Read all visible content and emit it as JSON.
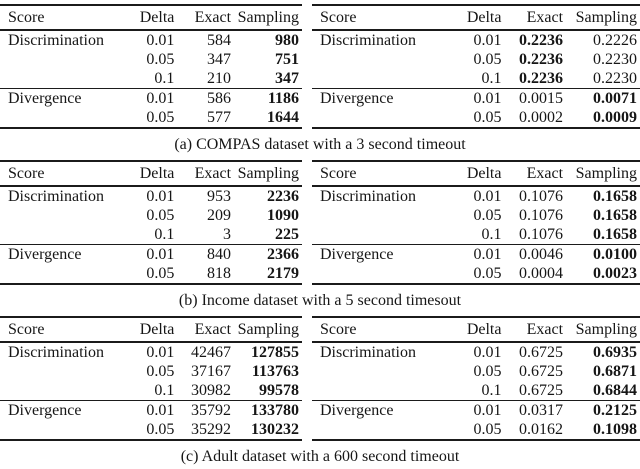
{
  "sections": [
    {
      "caption": "(a) COMPAS dataset with a 3 second timeout",
      "tables": [
        {
          "headers": [
            "Score",
            "Delta",
            "Exact",
            "Sampling"
          ],
          "rows": [
            {
              "cells": [
                "Discrimination",
                "0.01",
                "584",
                "980"
              ],
              "bold": [
                false,
                false,
                false,
                true
              ],
              "rule_above": false
            },
            {
              "cells": [
                "",
                "0.05",
                "347",
                "751"
              ],
              "bold": [
                false,
                false,
                false,
                true
              ],
              "rule_above": false
            },
            {
              "cells": [
                "",
                "0.1",
                "210",
                "347"
              ],
              "bold": [
                false,
                false,
                false,
                true
              ],
              "rule_above": false
            },
            {
              "cells": [
                "Divergence",
                "0.01",
                "586",
                "1186"
              ],
              "bold": [
                false,
                false,
                false,
                true
              ],
              "rule_above": true
            },
            {
              "cells": [
                "",
                "0.05",
                "577",
                "1644"
              ],
              "bold": [
                false,
                false,
                false,
                true
              ],
              "rule_above": false
            }
          ]
        },
        {
          "headers": [
            "Score",
            "Delta",
            "Exact",
            "Sampling"
          ],
          "rows": [
            {
              "cells": [
                "Discrimination",
                "0.01",
                "0.2236",
                "0.2226"
              ],
              "bold": [
                false,
                false,
                true,
                false
              ],
              "rule_above": false
            },
            {
              "cells": [
                "",
                "0.05",
                "0.2236",
                "0.2230"
              ],
              "bold": [
                false,
                false,
                true,
                false
              ],
              "rule_above": false
            },
            {
              "cells": [
                "",
                "0.1",
                "0.2236",
                "0.2230"
              ],
              "bold": [
                false,
                false,
                true,
                false
              ],
              "rule_above": false
            },
            {
              "cells": [
                "Divergence",
                "0.01",
                "0.0015",
                "0.0071"
              ],
              "bold": [
                false,
                false,
                false,
                true
              ],
              "rule_above": true
            },
            {
              "cells": [
                "",
                "0.05",
                "0.0002",
                "0.0009"
              ],
              "bold": [
                false,
                false,
                false,
                true
              ],
              "rule_above": false
            }
          ]
        }
      ]
    },
    {
      "caption": "(b) Income dataset with a 5 second timesout",
      "tables": [
        {
          "headers": [
            "Score",
            "Delta",
            "Exact",
            "Sampling"
          ],
          "rows": [
            {
              "cells": [
                "Discrimination",
                "0.01",
                "953",
                "2236"
              ],
              "bold": [
                false,
                false,
                false,
                true
              ],
              "rule_above": false
            },
            {
              "cells": [
                "",
                "0.05",
                "209",
                "1090"
              ],
              "bold": [
                false,
                false,
                false,
                true
              ],
              "rule_above": false
            },
            {
              "cells": [
                "",
                "0.1",
                "3",
                "225"
              ],
              "bold": [
                false,
                false,
                false,
                true
              ],
              "rule_above": false
            },
            {
              "cells": [
                "Divergence",
                "0.01",
                "840",
                "2366"
              ],
              "bold": [
                false,
                false,
                false,
                true
              ],
              "rule_above": true
            },
            {
              "cells": [
                "",
                "0.05",
                "818",
                "2179"
              ],
              "bold": [
                false,
                false,
                false,
                true
              ],
              "rule_above": false
            }
          ]
        },
        {
          "headers": [
            "Score",
            "Delta",
            "Exact",
            "Sampling"
          ],
          "rows": [
            {
              "cells": [
                "Discrimination",
                "0.01",
                "0.1076",
                "0.1658"
              ],
              "bold": [
                false,
                false,
                false,
                true
              ],
              "rule_above": false
            },
            {
              "cells": [
                "",
                "0.05",
                "0.1076",
                "0.1658"
              ],
              "bold": [
                false,
                false,
                false,
                true
              ],
              "rule_above": false
            },
            {
              "cells": [
                "",
                "0.1",
                "0.1076",
                "0.1658"
              ],
              "bold": [
                false,
                false,
                false,
                true
              ],
              "rule_above": false
            },
            {
              "cells": [
                "Divergence",
                "0.01",
                "0.0046",
                "0.0100"
              ],
              "bold": [
                false,
                false,
                false,
                true
              ],
              "rule_above": true
            },
            {
              "cells": [
                "",
                "0.05",
                "0.0004",
                "0.0023"
              ],
              "bold": [
                false,
                false,
                false,
                true
              ],
              "rule_above": false
            }
          ]
        }
      ]
    },
    {
      "caption": "(c) Adult dataset with a 600 second timeout",
      "tables": [
        {
          "headers": [
            "Score",
            "Delta",
            "Exact",
            "Sampling"
          ],
          "rows": [
            {
              "cells": [
                "Discrimination",
                "0.01",
                "42467",
                "127855"
              ],
              "bold": [
                false,
                false,
                false,
                true
              ],
              "rule_above": false
            },
            {
              "cells": [
                "",
                "0.05",
                "37167",
                "113763"
              ],
              "bold": [
                false,
                false,
                false,
                true
              ],
              "rule_above": false
            },
            {
              "cells": [
                "",
                "0.1",
                "30982",
                "99578"
              ],
              "bold": [
                false,
                false,
                false,
                true
              ],
              "rule_above": false
            },
            {
              "cells": [
                "Divergence",
                "0.01",
                "35792",
                "133780"
              ],
              "bold": [
                false,
                false,
                false,
                true
              ],
              "rule_above": true
            },
            {
              "cells": [
                "",
                "0.05",
                "35292",
                "130232"
              ],
              "bold": [
                false,
                false,
                false,
                true
              ],
              "rule_above": false
            }
          ]
        },
        {
          "headers": [
            "Score",
            "Delta",
            "Exact",
            "Sampling"
          ],
          "rows": [
            {
              "cells": [
                "Discrimination",
                "0.01",
                "0.6725",
                "0.6935"
              ],
              "bold": [
                false,
                false,
                false,
                true
              ],
              "rule_above": false
            },
            {
              "cells": [
                "",
                "0.05",
                "0.6725",
                "0.6871"
              ],
              "bold": [
                false,
                false,
                false,
                true
              ],
              "rule_above": false
            },
            {
              "cells": [
                "",
                "0.1",
                "0.6725",
                "0.6844"
              ],
              "bold": [
                false,
                false,
                false,
                true
              ],
              "rule_above": false
            },
            {
              "cells": [
                "Divergence",
                "0.01",
                "0.0317",
                "0.2125"
              ],
              "bold": [
                false,
                false,
                false,
                true
              ],
              "rule_above": true
            },
            {
              "cells": [
                "",
                "0.05",
                "0.0162",
                "0.1098"
              ],
              "bold": [
                false,
                false,
                false,
                true
              ],
              "rule_above": false
            }
          ]
        }
      ]
    }
  ]
}
